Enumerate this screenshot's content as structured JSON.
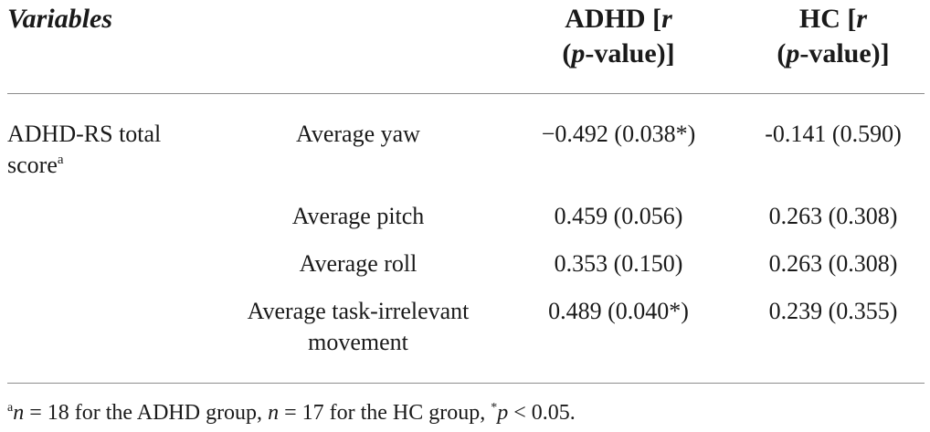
{
  "table": {
    "header": {
      "variables": "Variables",
      "adhd_prefix": "ADHD [",
      "adhd_r": "r",
      "adhd_p": "p",
      "adhd_suffix": "-value)]",
      "hc_prefix": "HC [",
      "hc_r": "r",
      "hc_p": "p",
      "hc_suffix": "-value)]"
    },
    "group_label": "ADHD-RS total score",
    "group_label_sup": "a",
    "rows": [
      {
        "measure": "Average yaw",
        "adhd": "−0.492 (0.038*)",
        "hc": "-0.141 (0.590)"
      },
      {
        "measure": "Average pitch",
        "adhd": "0.459 (0.056)",
        "hc": "0.263 (0.308)"
      },
      {
        "measure": "Average roll",
        "adhd": "0.353 (0.150)",
        "hc": "0.263 (0.308)"
      },
      {
        "measure": "Average task-irrelevant movement",
        "adhd": "0.489 (0.040*)",
        "hc": "0.239 (0.355)"
      }
    ]
  },
  "footnote": {
    "marker": "a",
    "n1_var": "n",
    "n1_text": " = 18 for the ADHD group, ",
    "n2_var": "n",
    "n2_text": " = 17 for the HC group, ",
    "sig_marker": "*",
    "p_var": "p",
    "p_text": " < 0.05."
  }
}
